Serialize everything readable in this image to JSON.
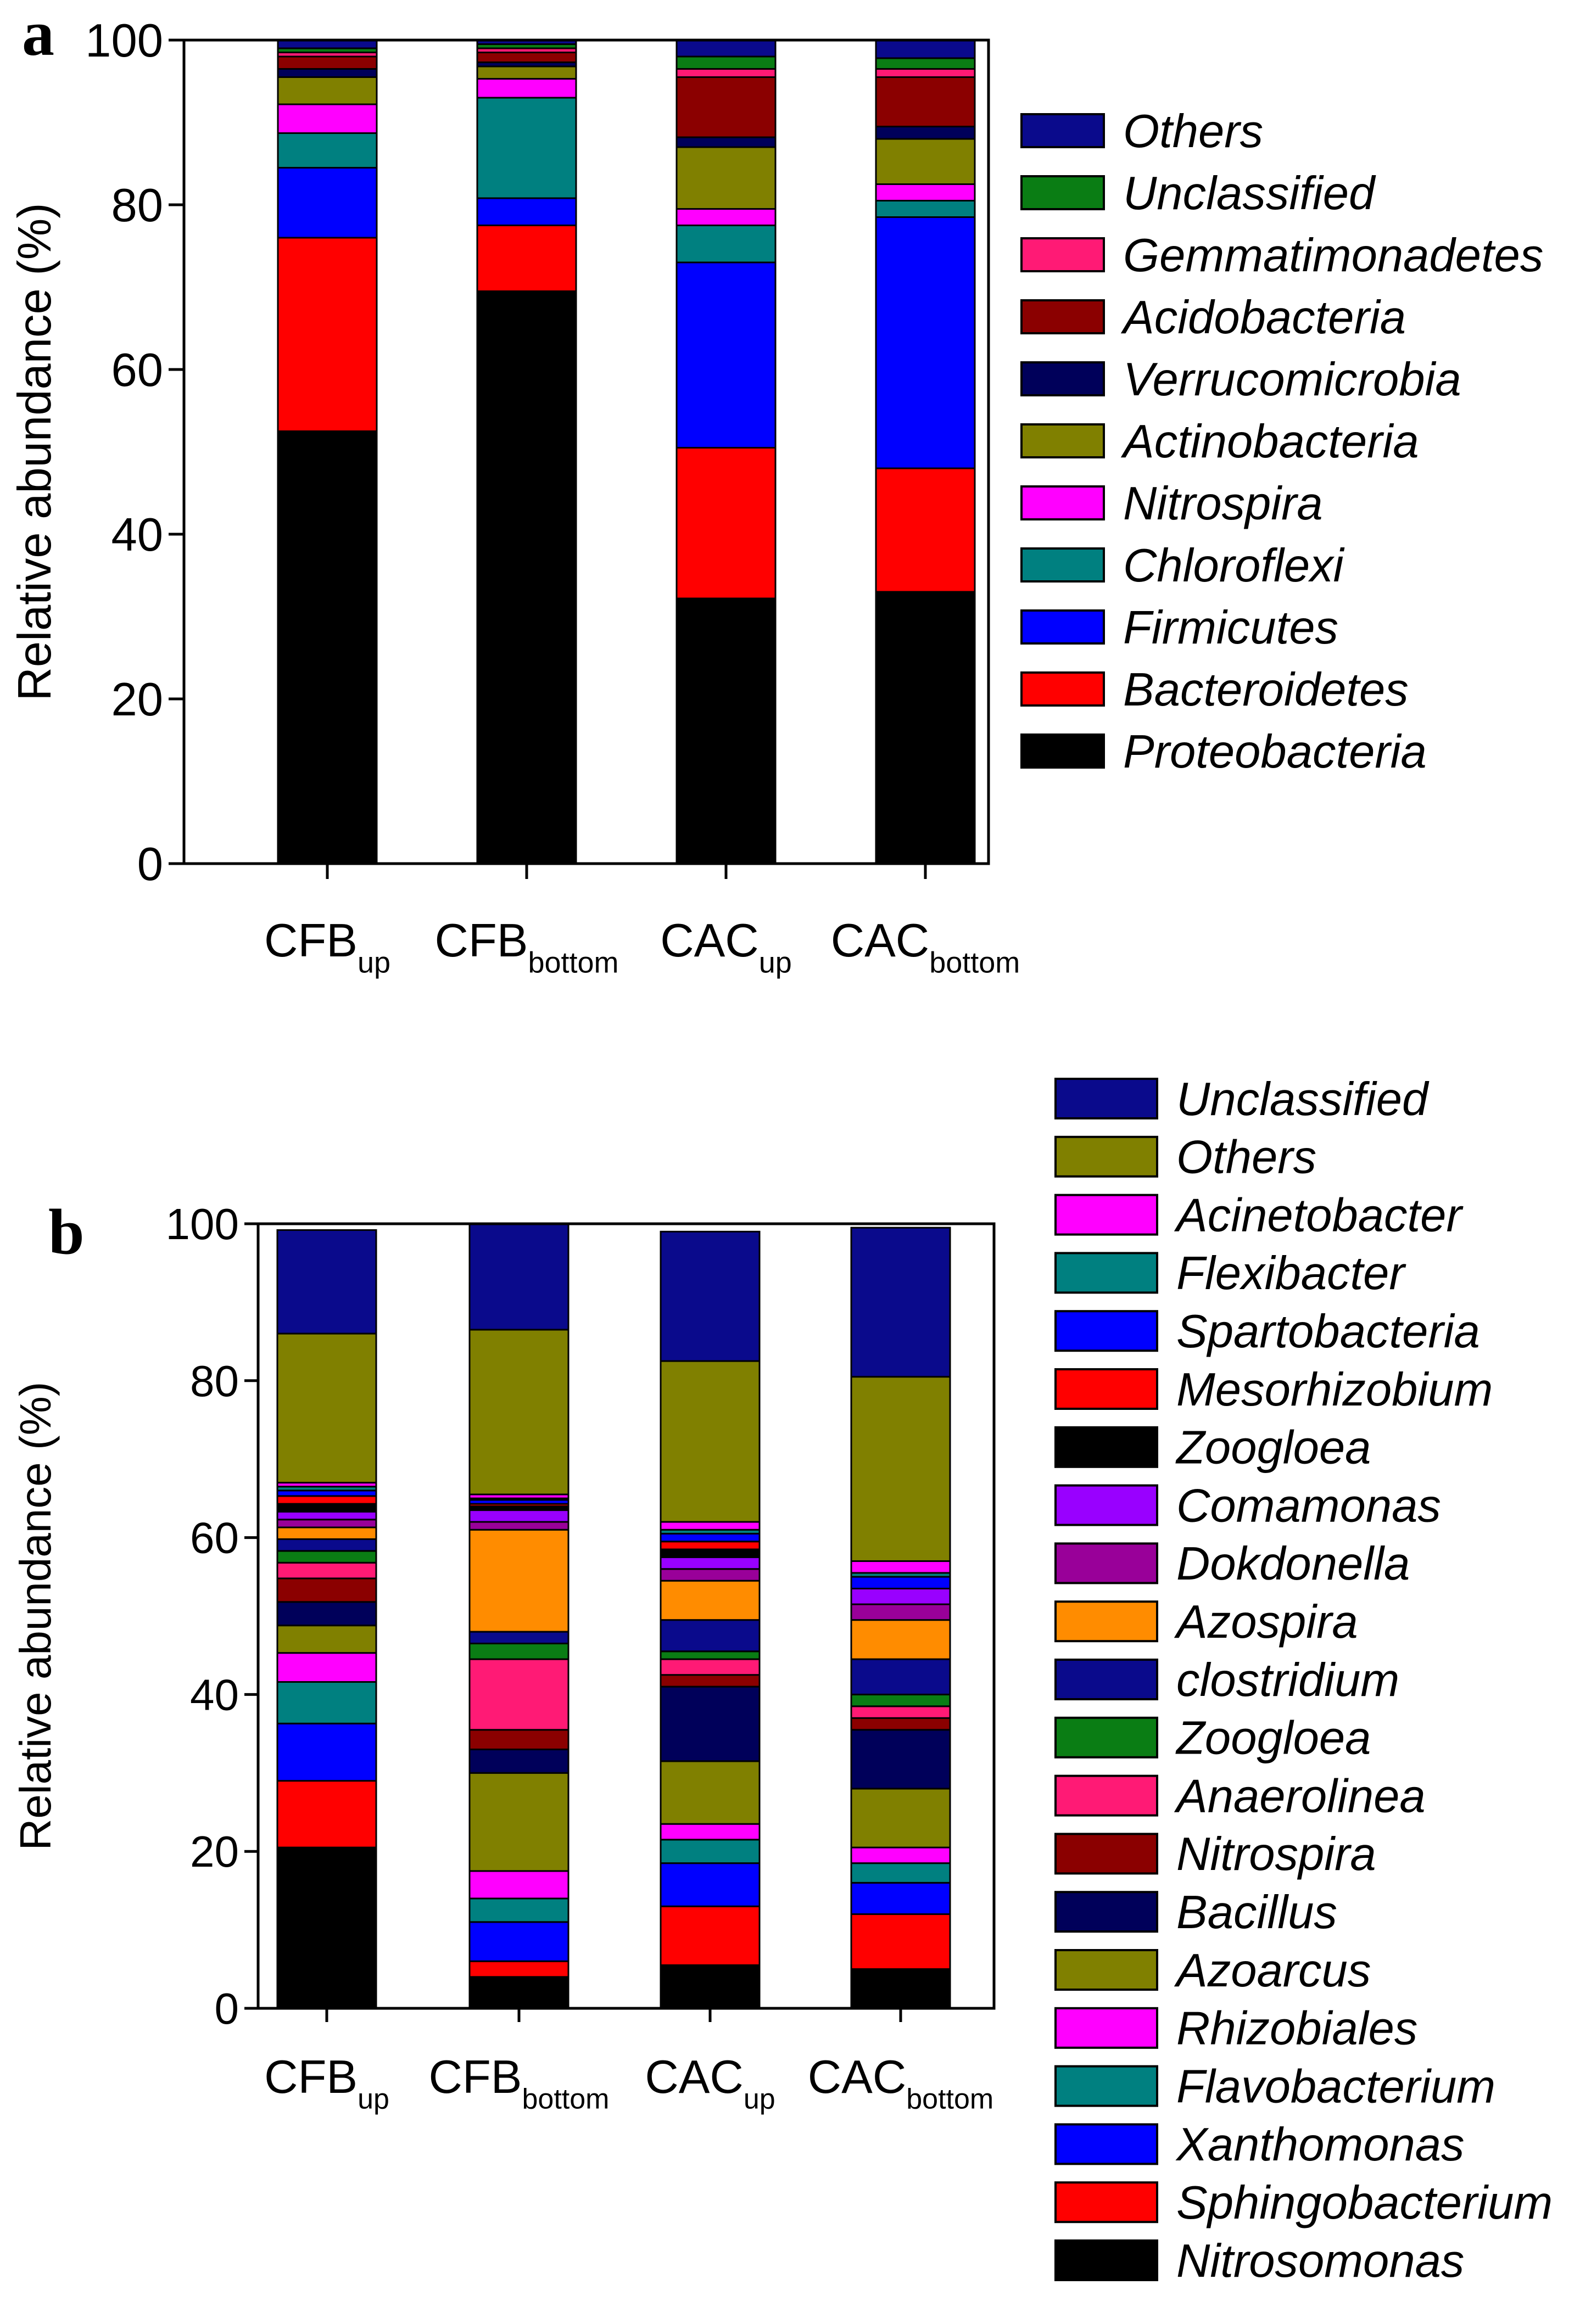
{
  "colors": {
    "Others_a": "#0a0a8c",
    "Unclassified_a": "#0a7d14",
    "Gemmatimonadetes": "#ff1a75",
    "Acidobacteria": "#8b0000",
    "Verrucomicrobia": "#00005a",
    "Actinobacteria": "#808000",
    "Nitrospira_a": "#ff00ff",
    "Chloroflexi": "#008080",
    "Firmicutes": "#0000ff",
    "Bacteroidetes": "#ff0000",
    "Proteobacteria": "#000000"
  },
  "chart_data": [
    {
      "panel": "a",
      "type": "bar",
      "stacked": true,
      "ylabel": "Relative abundance (%)",
      "ylim": [
        0,
        100
      ],
      "yticks": [
        "0",
        "20",
        "40",
        "60",
        "80",
        "100"
      ],
      "categories": [
        {
          "main": "CFB",
          "sub": "up"
        },
        {
          "main": "CFB",
          "sub": "bottom"
        },
        {
          "main": "CAC",
          "sub": "up"
        },
        {
          "main": "CAC",
          "sub": "bottom"
        }
      ],
      "legend_position": "right",
      "series": [
        {
          "name": "Proteobacteria",
          "color": "#000000",
          "values": [
            52.5,
            69.5,
            32.2,
            33.0
          ]
        },
        {
          "name": "Bacteroidetes",
          "color": "#ff0000",
          "values": [
            23.5,
            8.0,
            18.3,
            15.0
          ]
        },
        {
          "name": "Firmicutes",
          "color": "#0000ff",
          "values": [
            8.5,
            3.3,
            22.5,
            30.5
          ]
        },
        {
          "name": "Chloroflexi",
          "color": "#008080",
          "values": [
            4.2,
            12.2,
            4.5,
            2.0
          ]
        },
        {
          "name": "Nitrospira",
          "color": "#ff00ff",
          "values": [
            3.5,
            2.3,
            2.0,
            2.0
          ]
        },
        {
          "name": "Actinobacteria",
          "color": "#808000",
          "values": [
            3.3,
            1.5,
            7.5,
            5.5
          ]
        },
        {
          "name": "Verrucomicrobia",
          "color": "#00005a",
          "values": [
            1.0,
            0.5,
            1.2,
            1.5
          ]
        },
        {
          "name": "Acidobacteria",
          "color": "#8b0000",
          "values": [
            1.5,
            1.2,
            7.3,
            6.0
          ]
        },
        {
          "name": "Gemmatimonadetes",
          "color": "#ff1a75",
          "values": [
            0.5,
            0.5,
            1.0,
            1.0
          ]
        },
        {
          "name": "Unclassified",
          "color": "#0a7d14",
          "values": [
            0.5,
            0.5,
            1.5,
            1.3
          ]
        },
        {
          "name": "Others",
          "color": "#0a0a8c",
          "values": [
            1.0,
            0.5,
            2.0,
            2.2
          ]
        }
      ],
      "legend_order": [
        "Others",
        "Unclassified",
        "Gemmatimonadetes",
        "Acidobacteria",
        "Verrucomicrobia",
        "Actinobacteria",
        "Nitrospira",
        "Chloroflexi",
        "Firmicutes",
        "Bacteroidetes",
        "Proteobacteria"
      ]
    },
    {
      "panel": "b",
      "type": "bar",
      "stacked": true,
      "ylabel": "Relative abundance (%)",
      "ylim": [
        0,
        100
      ],
      "yticks": [
        "0",
        "20",
        "40",
        "60",
        "80",
        "100"
      ],
      "categories": [
        {
          "main": "CFB",
          "sub": "up"
        },
        {
          "main": "CFB",
          "sub": "bottom"
        },
        {
          "main": "CAC",
          "sub": "up"
        },
        {
          "main": "CAC",
          "sub": "bottom"
        }
      ],
      "legend_position": "right",
      "series": [
        {
          "name": "Nitrosomonas",
          "color": "#000000",
          "values": [
            20.5,
            4.0,
            5.5,
            5.0
          ]
        },
        {
          "name": "Sphingobacterium",
          "color": "#ff0000",
          "values": [
            8.5,
            2.0,
            7.5,
            7.0
          ]
        },
        {
          "name": "Xanthomonas",
          "color": "#0000ff",
          "values": [
            7.3,
            5.0,
            5.5,
            4.0
          ]
        },
        {
          "name": "Flavobacterium",
          "color": "#008080",
          "values": [
            5.3,
            3.0,
            3.0,
            2.5
          ]
        },
        {
          "name": "Rhizobiales",
          "color": "#ff00ff",
          "values": [
            3.7,
            3.5,
            2.0,
            2.0
          ]
        },
        {
          "name": "Azoarcus",
          "color": "#808000",
          "values": [
            3.5,
            12.5,
            8.0,
            7.5
          ]
        },
        {
          "name": "Bacillus",
          "color": "#00005a",
          "values": [
            3.0,
            3.0,
            9.5,
            7.5
          ]
        },
        {
          "name": "Nitrospira",
          "color": "#8b0000",
          "values": [
            3.0,
            2.5,
            1.5,
            1.5
          ]
        },
        {
          "name": "Anaerolinea",
          "color": "#ff1a75",
          "values": [
            2.0,
            9.0,
            2.0,
            1.5
          ]
        },
        {
          "name": "Zoogloea",
          "color": "#0a7d14",
          "values": [
            1.5,
            2.0,
            1.0,
            1.5
          ]
        },
        {
          "name": "clostridium",
          "color": "#0a0a8c",
          "values": [
            1.5,
            1.5,
            4.0,
            4.5
          ]
        },
        {
          "name": "Azospira",
          "color": "#ff8c00",
          "values": [
            1.5,
            13.0,
            5.0,
            5.0
          ]
        },
        {
          "name": "Dokdonella",
          "color": "#990099",
          "values": [
            1.0,
            1.0,
            1.5,
            2.0
          ]
        },
        {
          "name": "Comamonas",
          "color": "#9900ff",
          "values": [
            1.0,
            1.5,
            1.5,
            2.0
          ]
        },
        {
          "name": "Zoogloea",
          "color": "#000000",
          "values": [
            1.0,
            0.5,
            1.0,
            0.0
          ]
        },
        {
          "name": "Mesorhizobium",
          "color": "#ff0000",
          "values": [
            1.0,
            0.3,
            1.0,
            0.0
          ]
        },
        {
          "name": "Spartobacteria",
          "color": "#0000ff",
          "values": [
            0.7,
            0.5,
            1.0,
            1.5
          ]
        },
        {
          "name": "Flexibacter",
          "color": "#008080",
          "values": [
            0.5,
            0.2,
            0.5,
            0.5
          ]
        },
        {
          "name": "Acinetobacter",
          "color": "#ff00ff",
          "values": [
            0.5,
            0.5,
            1.0,
            1.5
          ]
        },
        {
          "name": "Others",
          "color": "#808000",
          "values": [
            19.0,
            21.0,
            20.5,
            23.5
          ]
        },
        {
          "name": "Unclassified",
          "color": "#0a0a8c",
          "values": [
            13.2,
            13.5,
            16.5,
            19.0
          ]
        }
      ]
    }
  ]
}
